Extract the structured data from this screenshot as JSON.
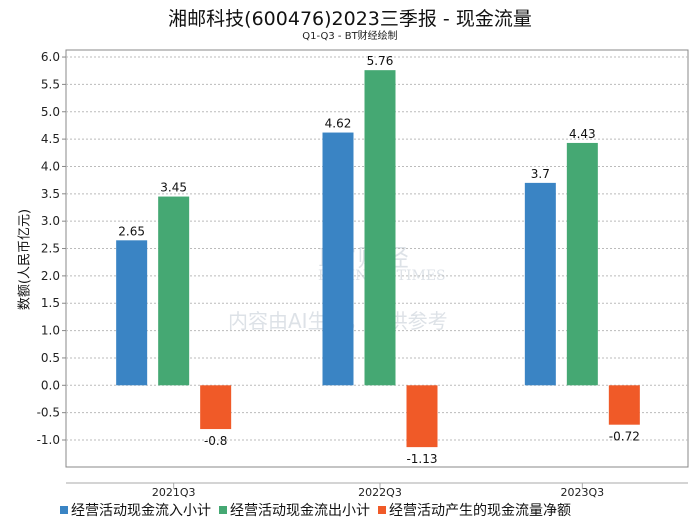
{
  "chart_data": {
    "type": "bar",
    "title": "湘邮科技(600476)2023三季报 - 现金流量",
    "subtitle": "Q1-Q3 - BT财经绘制",
    "xlabel": "",
    "ylabel": "数额(人民币亿元)",
    "ylim": [
      -1.0,
      6.0
    ],
    "yticks": [
      "6.0",
      "5.5",
      "5.0",
      "4.5",
      "4.0",
      "3.5",
      "3.0",
      "2.5",
      "2.0",
      "1.5",
      "1.0",
      "0.5",
      "0.0",
      "-0.5",
      "-1.0"
    ],
    "ytick_values": [
      6,
      5.5,
      5,
      4.5,
      4,
      3.5,
      3,
      2.5,
      2,
      1.5,
      1,
      0.5,
      0,
      -0.5,
      -1
    ],
    "categories": [
      "2021Q3",
      "2022Q3",
      "2023Q3"
    ],
    "series": [
      {
        "name": "经营活动现金流入小计",
        "color": "#3a84c4",
        "values": [
          2.65,
          4.62,
          3.7
        ],
        "labels": [
          "2.65",
          "4.62",
          "3.7"
        ]
      },
      {
        "name": "经营活动现金流出小计",
        "color": "#45a873",
        "values": [
          3.45,
          5.76,
          4.43
        ],
        "labels": [
          "3.45",
          "5.76",
          "4.43"
        ]
      },
      {
        "name": "经营活动产生的现金流量净额",
        "color": "#f05a28",
        "values": [
          -0.8,
          -1.13,
          -0.72
        ],
        "labels": [
          "-0.8",
          "-1.13",
          "-0.72"
        ]
      }
    ],
    "grid": true,
    "legend": "bottom"
  },
  "watermark": {
    "brand": "BT财经",
    "brand_en": "BUSINESSTIMES",
    "notice": "内容由AI生成，仅供参考"
  }
}
